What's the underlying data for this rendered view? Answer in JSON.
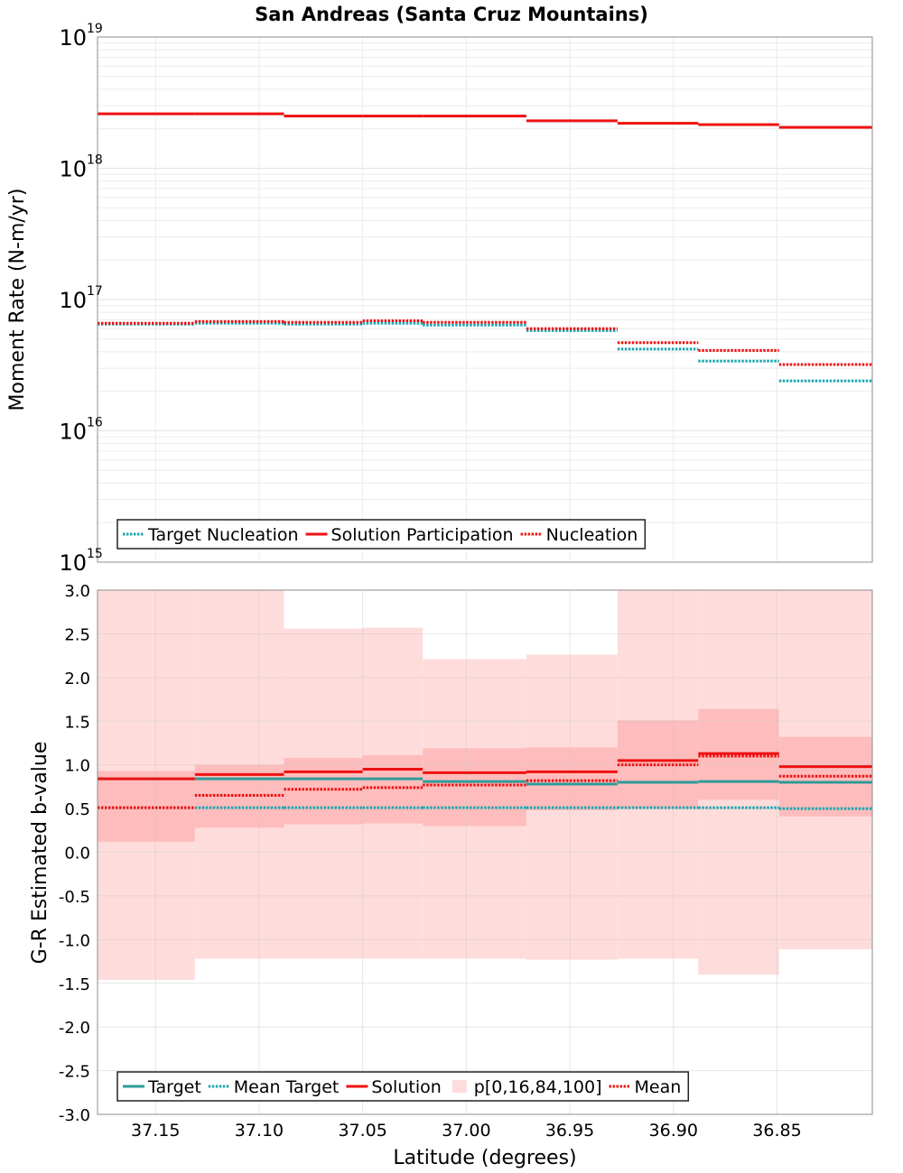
{
  "title": "San Andreas (Santa Cruz Mountains)",
  "colors": {
    "target": "#1aa6b0",
    "solution": "#ee1111",
    "nucleation": "#ee1111",
    "band_outer": "#ffdcdc",
    "band_inner": "#ffbcbc",
    "target_b": "#2f9b9b"
  },
  "chart_data": [
    {
      "type": "line",
      "subtype": "step",
      "title": "San Andreas (Santa Cruz Mountains)",
      "ylabel": "Moment Rate (N-m/yr)",
      "yscale": "log",
      "ylim": [
        1000000000000000.0,
        1e+19
      ],
      "xlim": [
        37.178,
        36.804
      ],
      "x_reversed": true,
      "grid": true,
      "y_ticks": [
        {
          "base": "10",
          "exp": "15"
        },
        {
          "base": "10",
          "exp": "16"
        },
        {
          "base": "10",
          "exp": "17"
        },
        {
          "base": "10",
          "exp": "18"
        },
        {
          "base": "10",
          "exp": "19"
        }
      ],
      "x_edges": [
        37.178,
        37.131,
        37.088,
        37.05,
        37.021,
        36.971,
        36.927,
        36.888,
        36.849,
        36.804
      ],
      "legend": {
        "position": "bottom-left",
        "entries": [
          "Target Nucleation",
          "Solution Participation",
          "Nucleation"
        ]
      },
      "series": [
        {
          "name": "Target Nucleation",
          "style": "dotted",
          "color": "target",
          "values": [
            6.5e+16,
            6.6e+16,
            6.5e+16,
            6.6e+16,
            6.4e+16,
            5.8e+16,
            4.2e+16,
            3.4e+16,
            2.4e+16
          ]
        },
        {
          "name": "Solution Participation",
          "style": "solid",
          "color": "solution",
          "values": [
            2.6e+18,
            2.6e+18,
            2.5e+18,
            2.5e+18,
            2.5e+18,
            2.3e+18,
            2.2e+18,
            2.15e+18,
            2.05e+18
          ]
        },
        {
          "name": "Nucleation",
          "style": "dotted",
          "color": "nucleation",
          "values": [
            6.6e+16,
            6.8e+16,
            6.7e+16,
            6.9e+16,
            6.7e+16,
            6e+16,
            4.7e+16,
            4.1e+16,
            3.2e+16
          ]
        }
      ]
    },
    {
      "type": "line",
      "subtype": "step",
      "xlabel": "Latitude (degrees)",
      "ylabel": "G-R Estimated b-value",
      "ylim": [
        -3.0,
        3.0
      ],
      "xlim": [
        37.178,
        36.804
      ],
      "x_reversed": true,
      "grid": true,
      "x_ticks": [
        "37.15",
        "37.10",
        "37.05",
        "37.00",
        "36.95",
        "36.90",
        "36.85"
      ],
      "x_tick_values": [
        37.15,
        37.1,
        37.05,
        37.0,
        36.95,
        36.9,
        36.85
      ],
      "y_ticks": [
        "3.0",
        "2.5",
        "2.0",
        "1.5",
        "1.0",
        "0.5",
        "0.0",
        "-0.5",
        "-1.0",
        "-1.5",
        "-2.0",
        "-2.5",
        "-3.0"
      ],
      "y_tick_values": [
        3.0,
        2.5,
        2.0,
        1.5,
        1.0,
        0.5,
        0.0,
        -0.5,
        -1.0,
        -1.5,
        -2.0,
        -2.5,
        -3.0
      ],
      "x_edges": [
        37.178,
        37.131,
        37.088,
        37.05,
        37.021,
        36.971,
        36.927,
        36.888,
        36.849,
        36.804
      ],
      "legend": {
        "position": "bottom-left",
        "entries": [
          "Target",
          "Mean Target",
          "Solution",
          "p[0,16,84,100]",
          "Mean"
        ]
      },
      "bands": {
        "p0": [
          -1.46,
          -1.22,
          -1.22,
          -1.22,
          -1.22,
          -1.23,
          -1.22,
          -1.4,
          -1.11
        ],
        "p16": [
          0.12,
          0.28,
          0.32,
          0.33,
          0.3,
          0.48,
          0.5,
          0.6,
          0.41
        ],
        "p84": [
          0.93,
          1.0,
          1.08,
          1.11,
          1.19,
          1.2,
          1.51,
          1.64,
          1.32
        ],
        "p100": [
          3.0,
          3.0,
          2.56,
          2.57,
          2.21,
          2.26,
          3.0,
          3.0,
          3.0
        ]
      },
      "series": [
        {
          "name": "Target",
          "style": "solid",
          "color": "target_b",
          "values": [
            0.84,
            0.84,
            0.84,
            0.84,
            0.81,
            0.78,
            0.8,
            0.81,
            0.8
          ]
        },
        {
          "name": "Mean Target",
          "style": "dotted",
          "color": "target",
          "values": [
            0.51,
            0.51,
            0.51,
            0.51,
            0.51,
            0.51,
            0.51,
            0.51,
            0.5
          ]
        },
        {
          "name": "Solution",
          "style": "solid",
          "color": "solution",
          "values": [
            0.84,
            0.89,
            0.92,
            0.95,
            0.91,
            0.92,
            1.05,
            1.13,
            0.98
          ]
        },
        {
          "name": "Mean",
          "style": "dotted",
          "color": "nucleation",
          "values": [
            0.51,
            0.65,
            0.72,
            0.74,
            0.77,
            0.82,
            1.0,
            1.1,
            0.87
          ]
        }
      ]
    }
  ]
}
